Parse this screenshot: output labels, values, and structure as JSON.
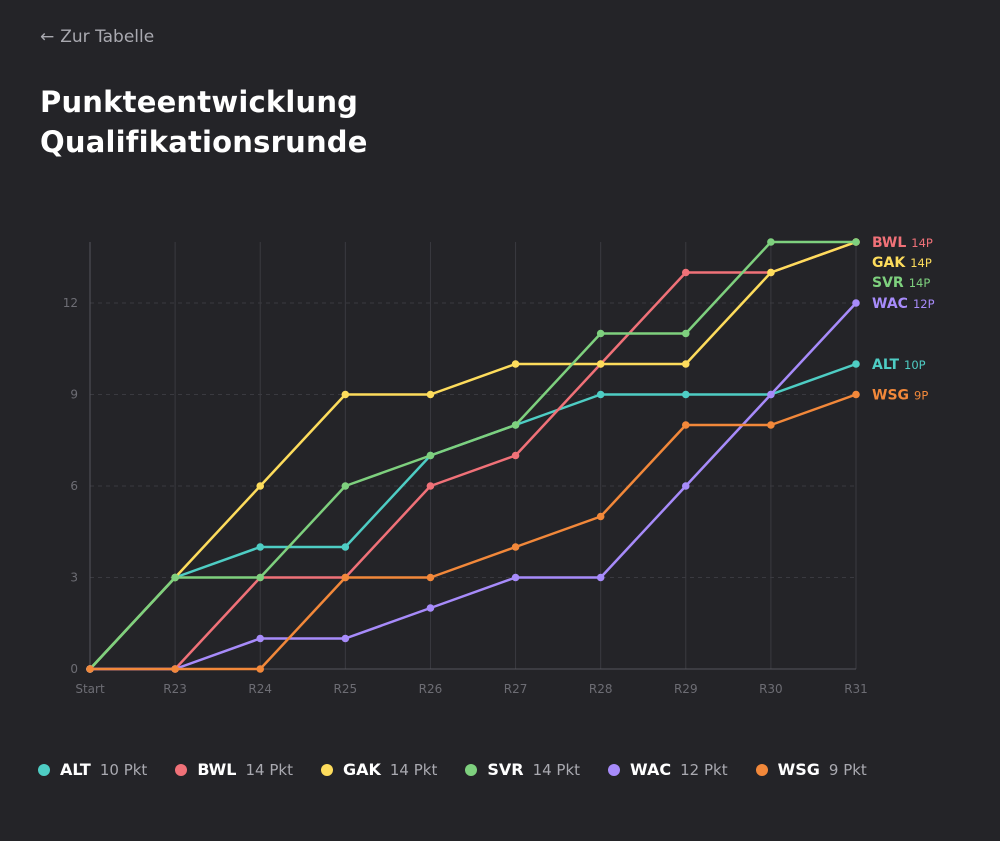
{
  "nav": {
    "back_arrow": "←",
    "back_label": "Zur Tabelle"
  },
  "title": {
    "line1": "Punkteentwicklung",
    "line2": "Qualifikationsrunde"
  },
  "colors": {
    "background": "#242428",
    "grid": "#3a3a40",
    "axis": "#55555c",
    "tick_text": "#6d6d74"
  },
  "chart_data": {
    "type": "line",
    "title": "Punkteentwicklung Qualifikationsrunde",
    "xlabel": "",
    "ylabel": "",
    "categories": [
      "Start",
      "R23",
      "R24",
      "R25",
      "R26",
      "R27",
      "R28",
      "R29",
      "R30",
      "R31"
    ],
    "y_ticks": [
      0,
      3,
      6,
      9,
      12
    ],
    "ylim": [
      0,
      14
    ],
    "grid": true,
    "series": [
      {
        "name": "ALT",
        "color": "#4ecdc4",
        "values": [
          0,
          3,
          4,
          4,
          7,
          8,
          9,
          9,
          9,
          10
        ],
        "end_label": "10P",
        "legend_label": "10 Pkt"
      },
      {
        "name": "BWL",
        "color": "#f07178",
        "values": [
          0,
          0,
          3,
          3,
          6,
          7,
          10,
          13,
          13,
          14
        ],
        "end_label": "14P",
        "legend_label": "14 Pkt"
      },
      {
        "name": "GAK",
        "color": "#fddc5c",
        "values": [
          0,
          3,
          6,
          9,
          9,
          10,
          10,
          10,
          13,
          14
        ],
        "end_label": "14P",
        "legend_label": "14 Pkt"
      },
      {
        "name": "SVR",
        "color": "#7ed07e",
        "values": [
          0,
          3,
          3,
          6,
          7,
          8,
          11,
          11,
          14,
          14
        ],
        "end_label": "14P",
        "legend_label": "14 Pkt"
      },
      {
        "name": "WAC",
        "color": "#a78bfa",
        "values": [
          0,
          0,
          1,
          1,
          2,
          3,
          3,
          6,
          9,
          12
        ],
        "end_label": "12P",
        "legend_label": "12 Pkt"
      },
      {
        "name": "WSG",
        "color": "#f2883a",
        "values": [
          0,
          0,
          0,
          3,
          3,
          4,
          5,
          8,
          8,
          9
        ],
        "end_label": "9P",
        "legend_label": "9 Pkt"
      }
    ]
  }
}
